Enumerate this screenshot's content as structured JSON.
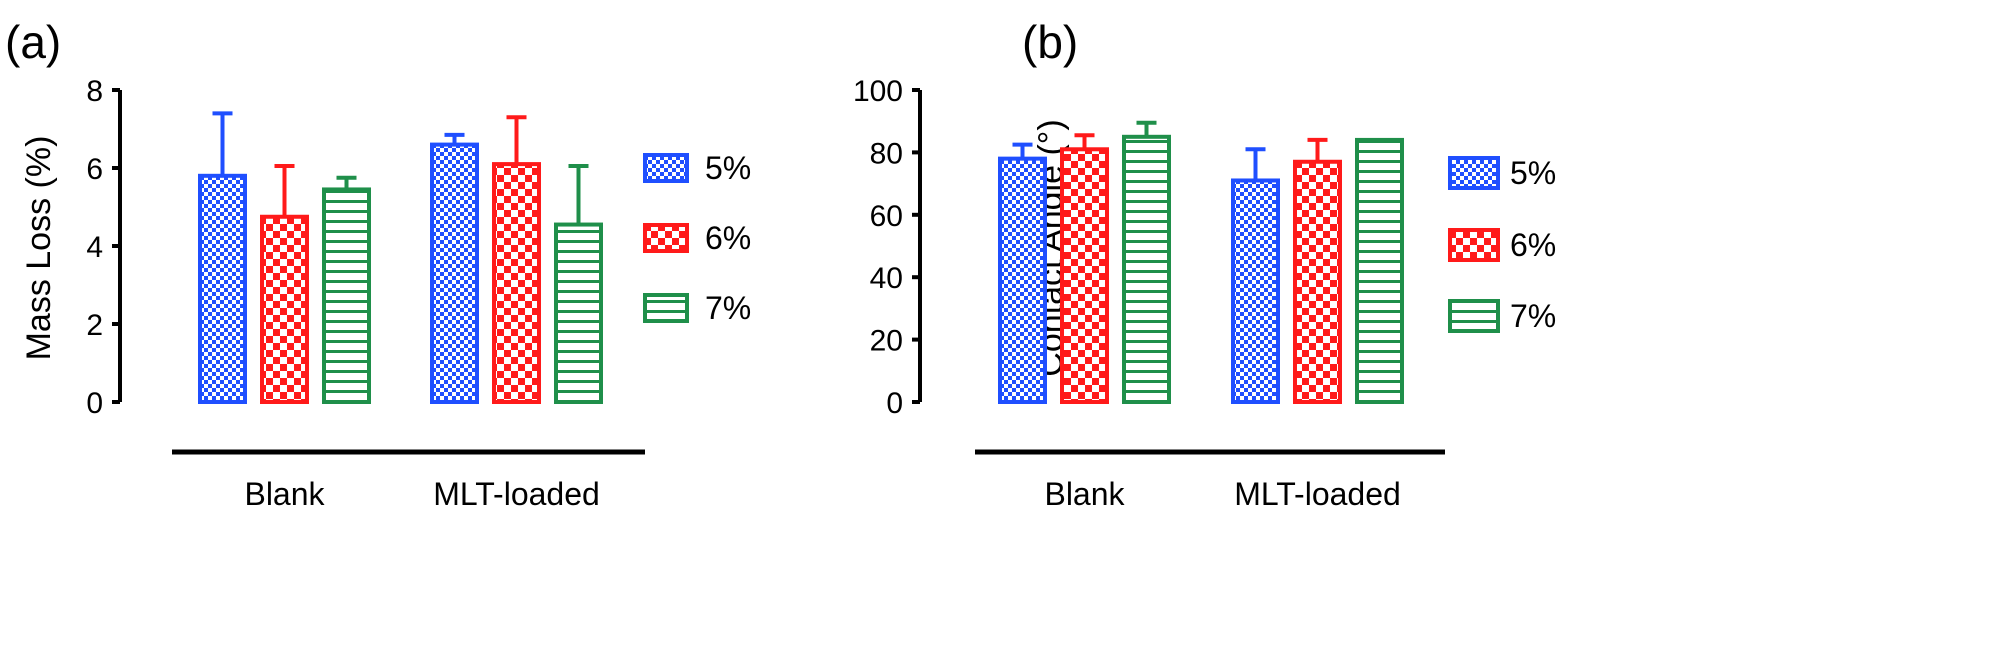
{
  "colors": {
    "s5": "#1f4fff",
    "s6": "#ff1a1a",
    "s7": "#1f8f4a",
    "axis": "#000000"
  },
  "chart_data": [
    {
      "panel_label": "(a)",
      "type": "bar",
      "title": "",
      "xlabel": "",
      "ylabel": "Mass Loss (%)",
      "ylim": [
        0,
        8
      ],
      "yticks": [
        0,
        2,
        4,
        6,
        8
      ],
      "grid": false,
      "legend": "right",
      "categories": [
        "Blank",
        "MLT-loaded"
      ],
      "series": [
        {
          "name": "5%",
          "pattern": "checker",
          "values": [
            5.8,
            6.6
          ],
          "errors": [
            1.6,
            0.25
          ]
        },
        {
          "name": "6%",
          "pattern": "checker",
          "values": [
            4.75,
            6.1
          ],
          "errors": [
            1.3,
            1.2
          ]
        },
        {
          "name": "7%",
          "pattern": "hlines",
          "values": [
            5.45,
            4.55
          ],
          "errors": [
            0.3,
            1.5
          ]
        }
      ]
    },
    {
      "panel_label": "(b)",
      "type": "bar",
      "title": "",
      "xlabel": "",
      "ylabel": "Contact Angle (°)",
      "ylim": [
        0,
        100
      ],
      "yticks": [
        0,
        20,
        40,
        60,
        80,
        100
      ],
      "grid": false,
      "legend": "right",
      "categories": [
        "Blank",
        "MLT-loaded"
      ],
      "series": [
        {
          "name": "5%",
          "pattern": "checker",
          "values": [
            78,
            71
          ],
          "errors": [
            4.5,
            10
          ]
        },
        {
          "name": "6%",
          "pattern": "checker",
          "values": [
            81,
            77
          ],
          "errors": [
            4.5,
            7
          ]
        },
        {
          "name": "7%",
          "pattern": "hlines",
          "values": [
            85,
            84
          ],
          "errors": [
            4.5,
            0
          ]
        }
      ]
    }
  ]
}
